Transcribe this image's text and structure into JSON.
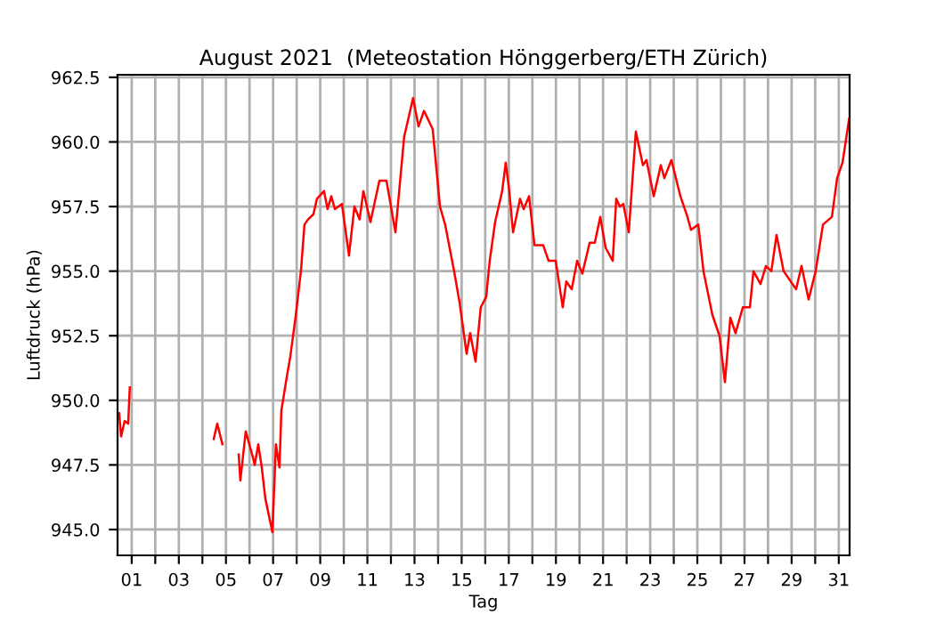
{
  "chart_data": {
    "type": "line",
    "title": "August 2021  (Meteostation Hönggerberg/ETH Zürich)",
    "xlabel": "Tag",
    "ylabel": "Luftdruck (hPa)",
    "x": [
      0.47,
      0.55,
      0.7,
      0.85,
      0.92,
      2.5,
      4.48,
      4.63,
      4.85,
      5.2,
      5.54,
      5.61,
      5.84,
      6.14,
      6.22,
      6.37,
      6.52,
      6.67,
      6.97,
      7.12,
      7.27,
      7.35,
      7.58,
      7.73,
      7.95,
      8.18,
      8.33,
      8.48,
      8.71,
      8.86,
      9.16,
      9.31,
      9.47,
      9.62,
      9.92,
      10.22,
      10.45,
      10.67,
      10.83,
      11.13,
      11.51,
      11.81,
      12.19,
      12.56,
      12.94,
      13.17,
      13.4,
      13.77,
      14.08,
      14.3,
      14.68,
      14.91,
      15.21,
      15.36,
      15.59,
      15.81,
      16.04,
      16.19,
      16.42,
      16.72,
      16.87,
      17.02,
      17.18,
      17.48,
      17.63,
      17.86,
      18.09,
      18.46,
      18.69,
      18.99,
      19.29,
      19.44,
      19.67,
      19.9,
      20.12,
      20.43,
      20.65,
      20.88,
      21.11,
      21.41,
      21.56,
      21.71,
      21.86,
      22.09,
      22.39,
      22.69,
      22.84,
      23.15,
      23.45,
      23.6,
      23.9,
      24.28,
      24.58,
      24.73,
      25.04,
      25.26,
      25.64,
      25.94,
      26.17,
      26.4,
      26.62,
      26.93,
      27.23,
      27.38,
      27.68,
      27.91,
      28.14,
      28.36,
      28.66,
      29.19,
      29.42,
      29.72,
      30.02,
      30.33,
      30.71,
      30.93,
      31.16,
      31.44
    ],
    "series": [
      {
        "color": "#ff0000",
        "values": [
          949.5,
          948.6,
          949.2,
          949.1,
          950.5,
          null,
          948.5,
          949.1,
          948.3,
          null,
          947.9,
          946.9,
          948.8,
          947.8,
          947.5,
          948.3,
          947.4,
          946.2,
          944.9,
          948.3,
          947.4,
          949.6,
          950.9,
          951.7,
          953.2,
          955.0,
          956.8,
          957.0,
          957.2,
          957.8,
          958.1,
          957.4,
          957.9,
          957.4,
          957.6,
          955.6,
          957.5,
          957.0,
          958.1,
          956.9,
          958.5,
          958.5,
          956.5,
          960.2,
          961.7,
          960.6,
          961.2,
          960.5,
          957.5,
          956.8,
          955.0,
          953.8,
          951.8,
          952.6,
          951.5,
          953.6,
          954.0,
          955.4,
          956.9,
          958.1,
          959.2,
          958.1,
          956.5,
          957.8,
          957.4,
          957.9,
          956.0,
          956.0,
          955.4,
          955.4,
          953.6,
          954.6,
          954.3,
          955.4,
          954.9,
          956.1,
          956.1,
          957.1,
          955.9,
          955.4,
          957.8,
          957.5,
          957.6,
          956.5,
          960.4,
          959.1,
          959.3,
          957.9,
          959.1,
          958.6,
          959.3,
          957.9,
          957.1,
          956.6,
          956.8,
          955.0,
          953.3,
          952.5,
          950.7,
          953.2,
          952.6,
          953.6,
          953.6,
          955.0,
          954.5,
          955.2,
          955.0,
          956.4,
          955.0,
          954.3,
          955.2,
          953.9,
          955.0,
          956.8,
          957.1,
          958.6,
          959.2,
          960.9
        ]
      }
    ],
    "xlim": [
      0.4,
      31.46
    ],
    "ylim": [
      944.0,
      962.6
    ],
    "xticks": [
      {
        "value": 1,
        "label": "01"
      },
      {
        "value": 2,
        "label": null
      },
      {
        "value": 3,
        "label": "03"
      },
      {
        "value": 4,
        "label": null
      },
      {
        "value": 5,
        "label": "05"
      },
      {
        "value": 6,
        "label": null
      },
      {
        "value": 7,
        "label": "07"
      },
      {
        "value": 8,
        "label": null
      },
      {
        "value": 9,
        "label": "09"
      },
      {
        "value": 10,
        "label": null
      },
      {
        "value": 11,
        "label": "11"
      },
      {
        "value": 12,
        "label": null
      },
      {
        "value": 13,
        "label": "13"
      },
      {
        "value": 14,
        "label": null
      },
      {
        "value": 15,
        "label": "15"
      },
      {
        "value": 16,
        "label": null
      },
      {
        "value": 17,
        "label": "17"
      },
      {
        "value": 18,
        "label": null
      },
      {
        "value": 19,
        "label": "19"
      },
      {
        "value": 20,
        "label": null
      },
      {
        "value": 21,
        "label": "21"
      },
      {
        "value": 22,
        "label": null
      },
      {
        "value": 23,
        "label": "23"
      },
      {
        "value": 24,
        "label": null
      },
      {
        "value": 25,
        "label": "25"
      },
      {
        "value": 26,
        "label": null
      },
      {
        "value": 27,
        "label": "27"
      },
      {
        "value": 28,
        "label": null
      },
      {
        "value": 29,
        "label": "29"
      },
      {
        "value": 30,
        "label": null
      },
      {
        "value": 31,
        "label": "31"
      }
    ],
    "yticks": [
      {
        "value": 945,
        "label": "945.0"
      },
      {
        "value": 947.5,
        "label": "947.5"
      },
      {
        "value": 950,
        "label": "950.0"
      },
      {
        "value": 952.5,
        "label": "952.5"
      },
      {
        "value": 955,
        "label": "955.0"
      },
      {
        "value": 957.5,
        "label": "957.5"
      },
      {
        "value": 960,
        "label": "960.0"
      },
      {
        "value": 962.5,
        "label": "962.5"
      }
    ],
    "grid": true,
    "legend": false
  }
}
